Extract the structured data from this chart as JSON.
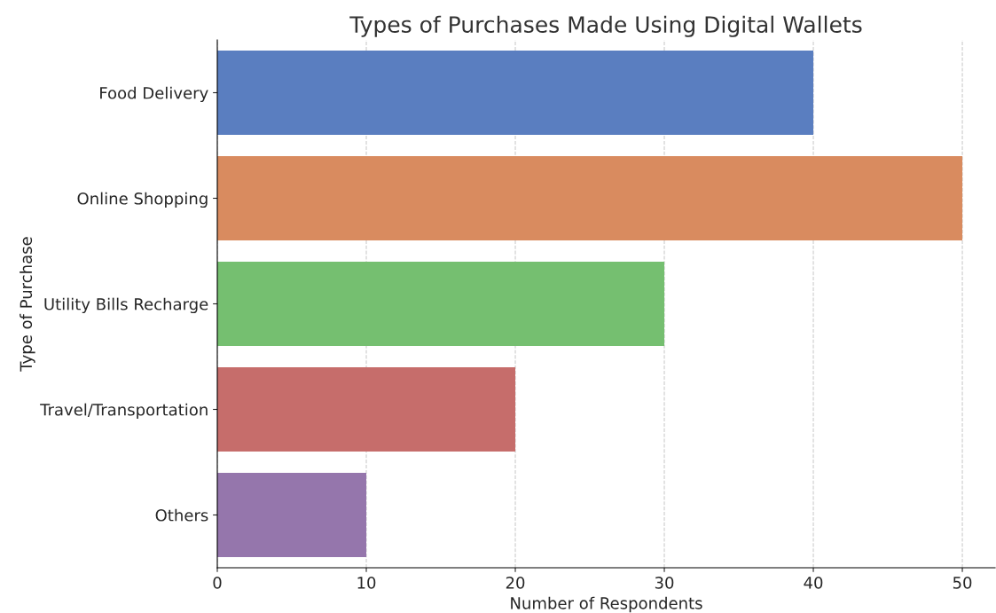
{
  "chart_data": {
    "type": "bar",
    "orientation": "horizontal",
    "title": "Types of Purchases Made Using Digital Wallets",
    "xlabel": "Number of Respondents",
    "ylabel": "Type of Purchase",
    "categories": [
      "Food Delivery",
      "Online Shopping",
      "Utility Bills Recharge",
      "Travel/Transportation",
      "Others"
    ],
    "values": [
      40,
      50,
      30,
      20,
      10
    ],
    "colors": [
      "#5a7ec0",
      "#d98b5f",
      "#75bf70",
      "#c66d6b",
      "#9576ac"
    ],
    "xlim": [
      0,
      52.2
    ],
    "xticks": [
      0,
      10,
      20,
      30,
      40,
      50
    ],
    "grid": "x",
    "legend": false
  }
}
